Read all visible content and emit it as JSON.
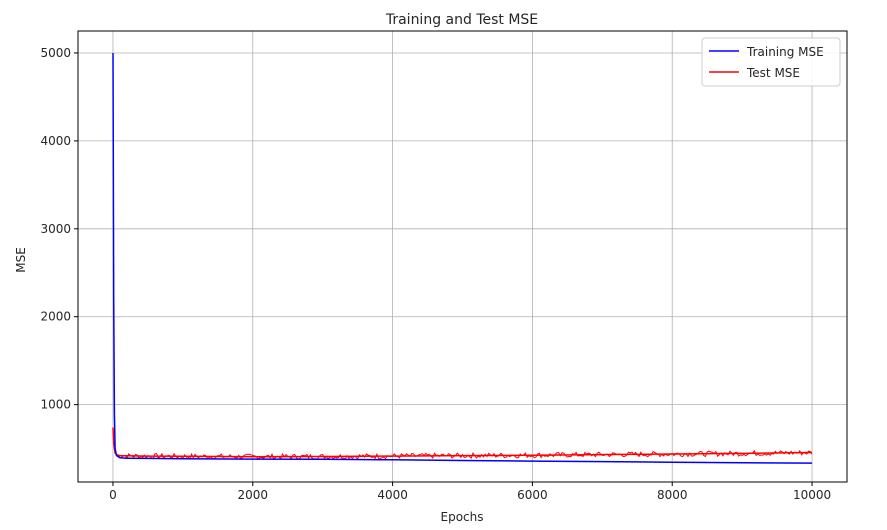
{
  "chart_data": {
    "type": "line",
    "title": "Training and Test MSE",
    "xlabel": "Epochs",
    "ylabel": "MSE",
    "xlim": [
      -500,
      10500
    ],
    "ylim": [
      120,
      5250
    ],
    "xticks": [
      0,
      2000,
      4000,
      6000,
      8000,
      10000
    ],
    "xtick_labels": [
      "0",
      "2000",
      "4000",
      "6000",
      "8000",
      "10000"
    ],
    "yticks": [
      1000,
      2000,
      3000,
      4000,
      5000
    ],
    "ytick_labels": [
      "1000",
      "2000",
      "3000",
      "4000",
      "5000"
    ],
    "grid": true,
    "legend_position": "top-right",
    "series": [
      {
        "name": "Training MSE",
        "color": "#0000ff",
        "x": [
          0,
          10,
          20,
          30,
          50,
          100,
          200,
          500,
          1000,
          2000,
          3000,
          4000,
          5000,
          6000,
          7000,
          8000,
          9000,
          10000
        ],
        "y": [
          5000,
          2200,
          900,
          500,
          420,
          395,
          390,
          388,
          385,
          380,
          378,
          372,
          365,
          358,
          352,
          345,
          340,
          335
        ]
      },
      {
        "name": "Test MSE",
        "color": "#ff0000",
        "x": [
          0,
          10,
          30,
          50,
          100,
          200,
          500,
          1000,
          2000,
          3000,
          4000,
          5000,
          6000,
          7000,
          8000,
          9000,
          10000
        ],
        "y": [
          740,
          560,
          450,
          430,
          420,
          418,
          415,
          412,
          408,
          410,
          415,
          420,
          425,
          432,
          438,
          445,
          455
        ]
      }
    ]
  }
}
